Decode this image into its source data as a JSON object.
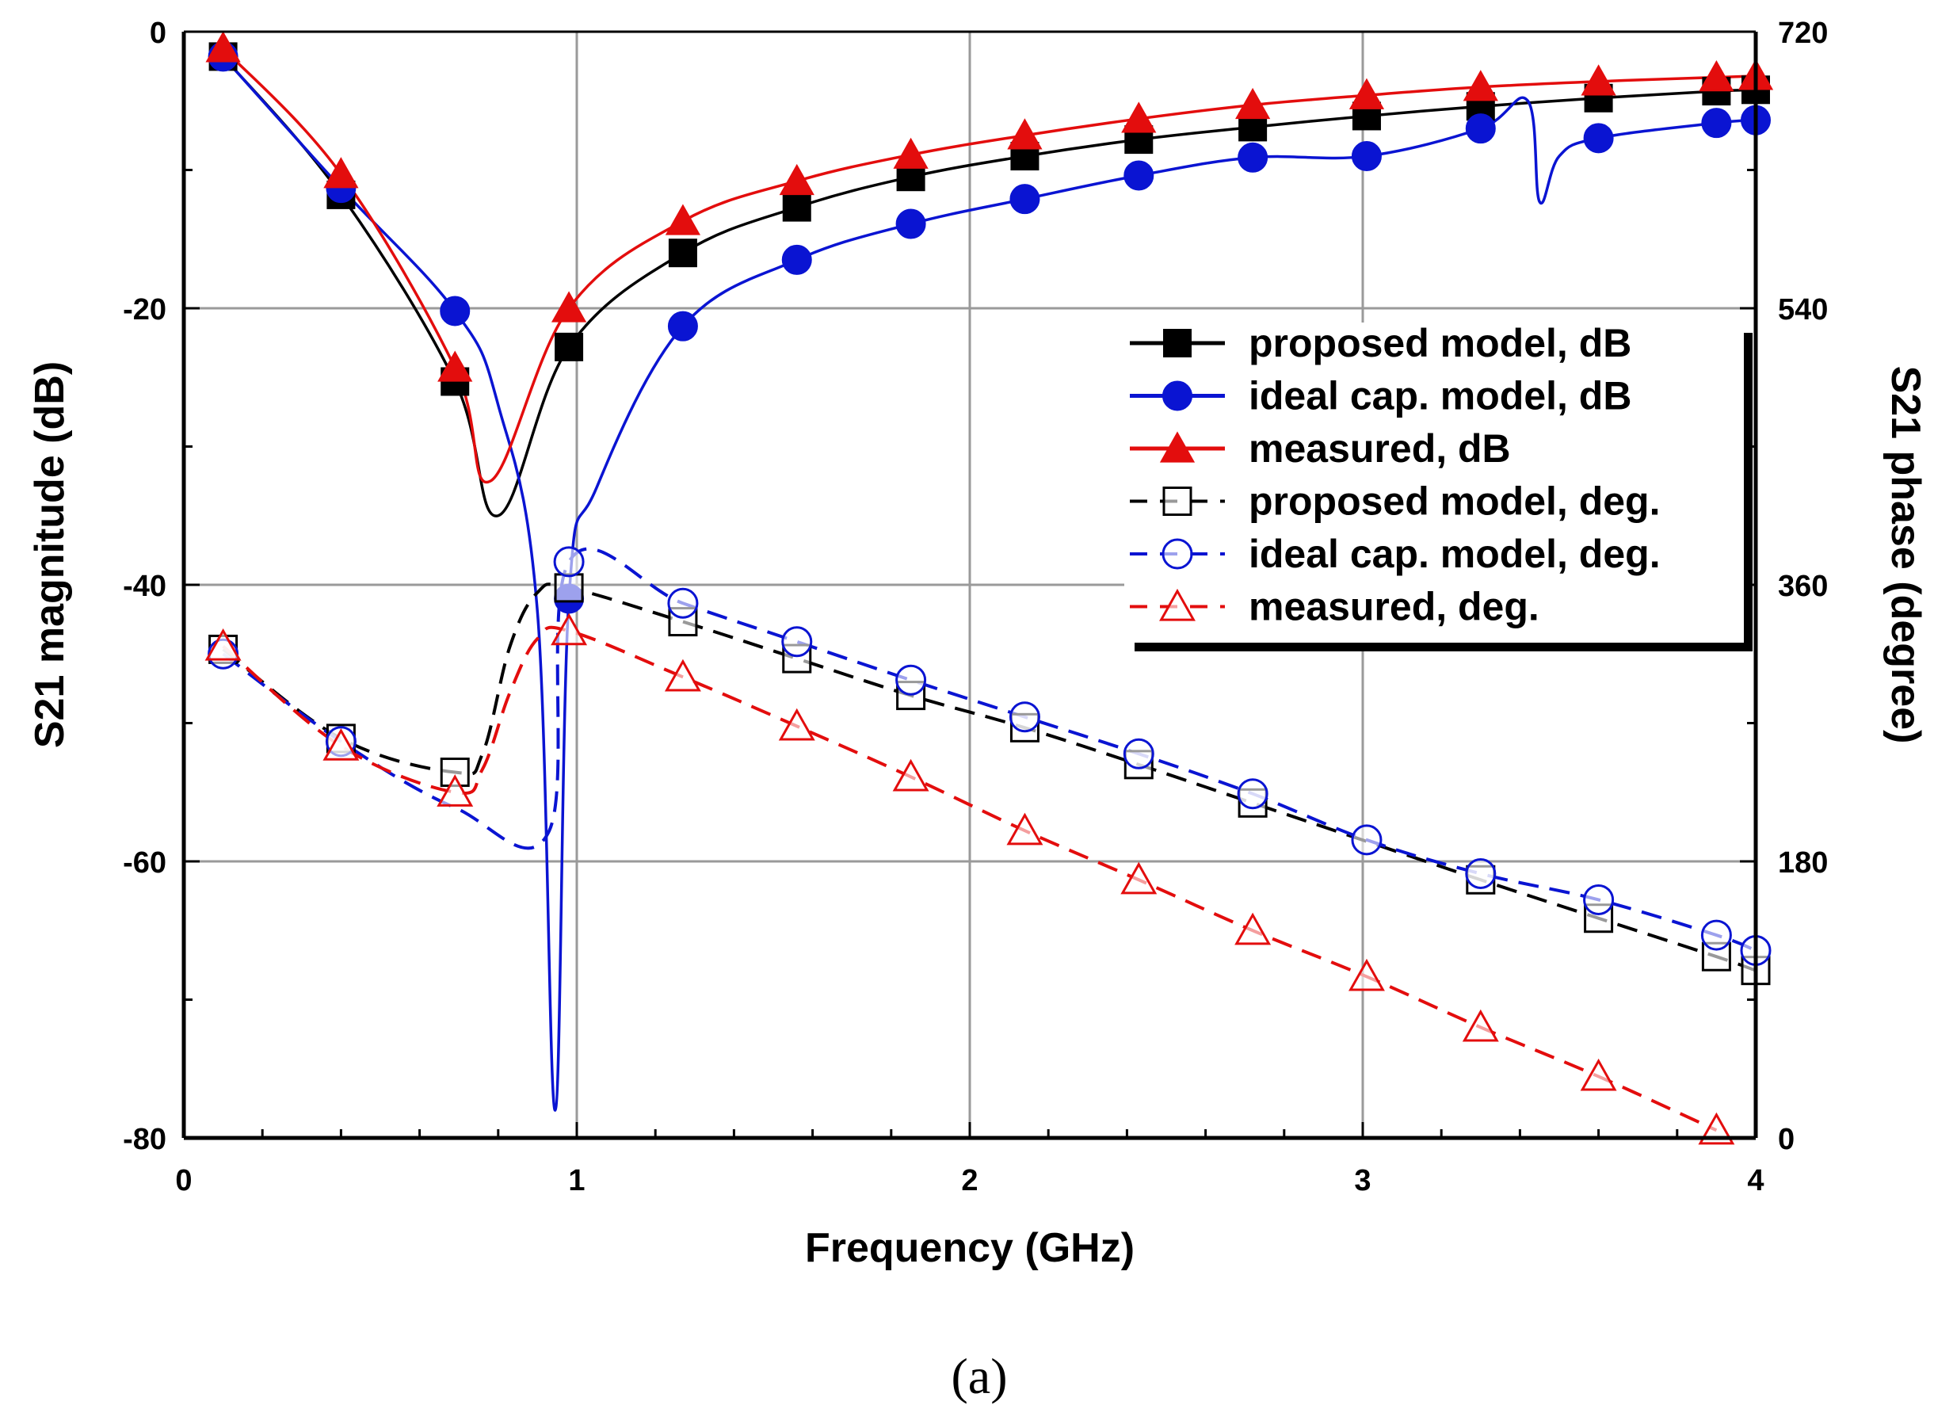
{
  "chart_data": {
    "type": "line",
    "title": "",
    "caption": "(a)",
    "xlabel": "Frequency  (GHz)",
    "ylabel": "S21 magnitude  (dB)",
    "y2label": "S21 phase  (degree)",
    "xlim": [
      0,
      4
    ],
    "ylim": [
      -80,
      0
    ],
    "y2lim": [
      0,
      720
    ],
    "xticks": [
      0,
      1,
      2,
      3,
      4
    ],
    "yticks": [
      0,
      -20,
      -40,
      -60,
      -80
    ],
    "y2ticks": [
      720,
      540,
      360,
      180,
      0
    ],
    "grid": true,
    "legend_position": "center-right",
    "series": [
      {
        "name": "proposed model, dB",
        "axis": "left",
        "color": "#000000",
        "style": "solid",
        "marker": "square-filled",
        "x": [
          0.1,
          0.4,
          0.69,
          0.8,
          0.98,
          1.27,
          1.56,
          1.85,
          2.14,
          2.43,
          2.72,
          3.01,
          3.3,
          3.6,
          3.9,
          4.0
        ],
        "y": [
          -1.8,
          -11.8,
          -25.3,
          -35,
          -22.8,
          -16,
          -12.7,
          -10.5,
          -9,
          -7.8,
          -6.9,
          -6.1,
          -5.4,
          -4.8,
          -4.3,
          -4.2
        ],
        "marker_idx": [
          0,
          1,
          2,
          4,
          5,
          6,
          7,
          8,
          9,
          10,
          11,
          12,
          13,
          14,
          15
        ]
      },
      {
        "name": "ideal cap. model, dB",
        "axis": "left",
        "color": "#0a14d2",
        "style": "solid",
        "marker": "circle-filled",
        "x": [
          0.1,
          0.4,
          0.69,
          0.8,
          0.9,
          0.945,
          0.98,
          1.05,
          1.27,
          1.56,
          1.85,
          2.14,
          2.43,
          2.72,
          3.01,
          3.3,
          3.42,
          3.45,
          3.5,
          3.6,
          3.9,
          4.0
        ],
        "y": [
          -1.8,
          -11.3,
          -20.2,
          -27,
          -42,
          -78,
          -41,
          -33,
          -21.3,
          -16.5,
          -13.9,
          -12.1,
          -10.4,
          -9.1,
          -9,
          -7,
          -5,
          -12.3,
          -9,
          -7.7,
          -6.6,
          -6.4
        ],
        "marker_idx": [
          0,
          1,
          2,
          6,
          8,
          9,
          10,
          11,
          12,
          13,
          14,
          15,
          19,
          20,
          21
        ]
      },
      {
        "name": "measured, dB",
        "axis": "left",
        "color": "#e30d0d",
        "style": "solid",
        "marker": "triangle-filled",
        "x": [
          0.1,
          0.4,
          0.69,
          0.78,
          0.98,
          1.27,
          1.56,
          1.85,
          2.14,
          2.43,
          2.72,
          3.01,
          3.3,
          3.6,
          3.9,
          4.0
        ],
        "y": [
          -1.2,
          -10.3,
          -24.3,
          -32.5,
          -20,
          -13.7,
          -10.8,
          -8.9,
          -7.5,
          -6.3,
          -5.3,
          -4.6,
          -4,
          -3.6,
          -3.3,
          -3.2
        ],
        "marker_idx": [
          0,
          1,
          2,
          4,
          5,
          6,
          7,
          8,
          9,
          10,
          11,
          12,
          13,
          14,
          15
        ]
      },
      {
        "name": "proposed model, deg.",
        "axis": "right",
        "color": "#000000",
        "style": "dashed",
        "marker": "square-open",
        "x": [
          0.1,
          0.4,
          0.69,
          0.76,
          0.83,
          0.9,
          0.98,
          1.27,
          1.56,
          1.85,
          2.14,
          2.43,
          2.72,
          3.01,
          3.3,
          3.6,
          3.9,
          4.0
        ],
        "y": [
          318,
          260,
          238,
          250,
          320,
          355,
          358,
          336,
          312,
          288,
          267,
          243,
          218,
          193,
          168,
          143,
          118,
          109
        ],
        "marker_idx": [
          0,
          1,
          2,
          6,
          7,
          8,
          9,
          10,
          11,
          12,
          14,
          15,
          16,
          17
        ]
      },
      {
        "name": "ideal cap. model, deg.",
        "axis": "right",
        "color": "#0a14d2",
        "style": "dashed",
        "marker": "circle-open",
        "x": [
          0.1,
          0.4,
          0.69,
          0.93,
          0.98,
          1.27,
          1.56,
          1.85,
          2.14,
          2.43,
          2.72,
          3.01,
          3.3,
          3.6,
          3.9,
          4.0
        ],
        "y": [
          315,
          258,
          215,
          200,
          375,
          348,
          323,
          298,
          274,
          250,
          224,
          194,
          172,
          155,
          132,
          122
        ],
        "marker_idx": [
          0,
          1,
          4,
          5,
          6,
          7,
          8,
          9,
          10,
          11,
          12,
          13,
          14,
          15
        ]
      },
      {
        "name": "measured, deg.",
        "axis": "right",
        "color": "#e30d0d",
        "style": "dashed",
        "marker": "triangle-open",
        "x": [
          0.1,
          0.4,
          0.69,
          0.76,
          0.83,
          0.9,
          0.98,
          1.27,
          1.56,
          1.85,
          2.14,
          2.43,
          2.72,
          3.01,
          3.3,
          3.6,
          3.9
        ],
        "y": [
          320,
          255,
          225,
          240,
          290,
          325,
          330,
          300,
          268,
          235,
          200,
          168,
          135,
          105,
          72,
          40,
          5
        ],
        "marker_idx": [
          0,
          1,
          2,
          6,
          7,
          8,
          9,
          10,
          11,
          12,
          13,
          14,
          15,
          16
        ]
      }
    ]
  }
}
